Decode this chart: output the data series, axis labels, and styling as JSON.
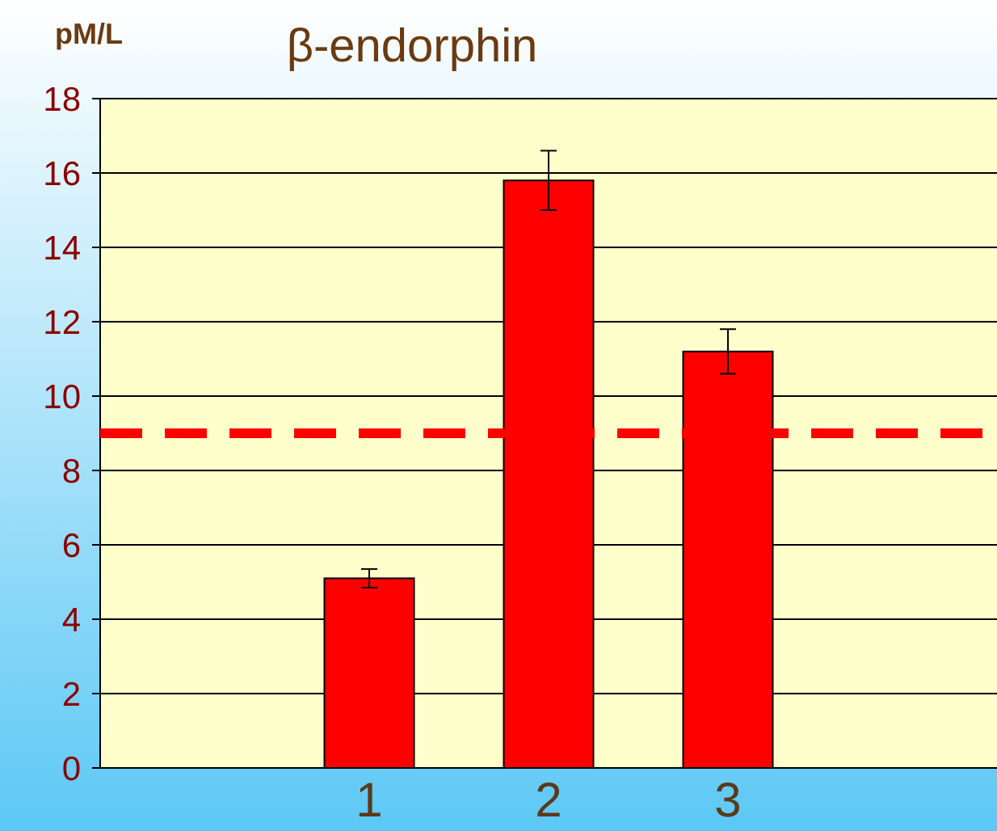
{
  "chart_data": {
    "type": "bar",
    "title": "β-endorphin",
    "ylabel": "pM/L",
    "categories": [
      null,
      "1",
      "2",
      "3",
      null
    ],
    "values": [
      null,
      5.1,
      15.8,
      11.2,
      null
    ],
    "errors": [
      null,
      0.25,
      0.8,
      0.6,
      null
    ],
    "color": "#ff0000",
    "ylim": [
      0,
      18
    ],
    "yticks": [
      0,
      2,
      4,
      6,
      8,
      10,
      12,
      14,
      16,
      18
    ],
    "grid": "y",
    "ref_lines": [
      {
        "axis": "y",
        "value": 9,
        "color": "#ff0000",
        "line_style": "dashed"
      }
    ]
  }
}
